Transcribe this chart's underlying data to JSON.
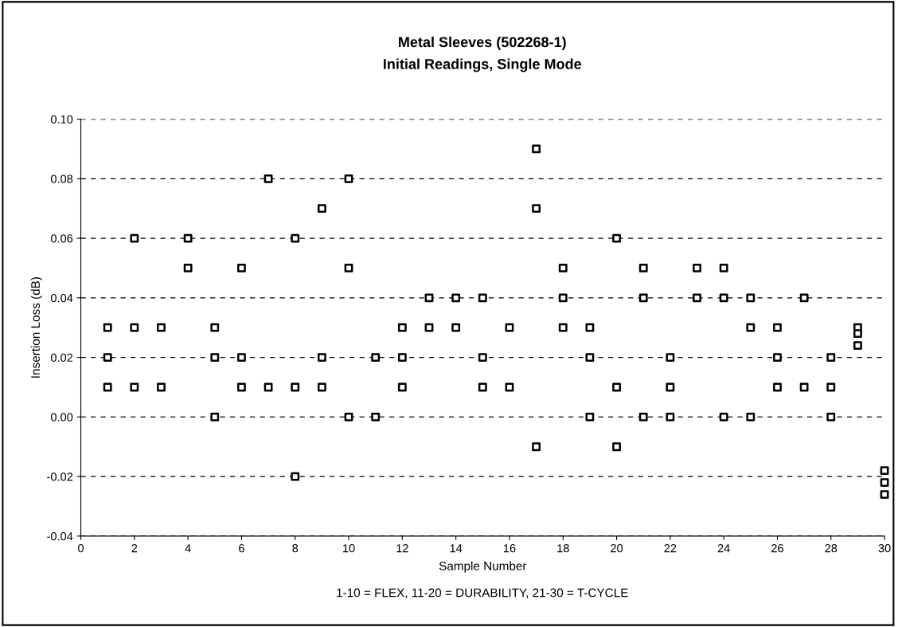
{
  "chart_data": {
    "type": "scatter",
    "title": "Metal Sleeves (502268-1)",
    "subtitle": "Initial Readings, Single Mode",
    "xlabel": "Sample Number",
    "ylabel": "Insertion Loss (dB)",
    "annotations": [
      "1-10 = FLEX, 11-20 = DURABILITY, 21-30 = T-CYCLE"
    ],
    "series": [
      {
        "color": "#000000",
        "x": [
          1,
          1,
          1,
          2,
          2,
          2,
          3,
          3,
          4,
          4,
          5,
          5,
          5,
          6,
          6,
          6,
          7,
          7,
          8,
          8,
          8,
          9,
          9,
          9,
          10,
          10,
          10,
          11,
          11,
          12,
          12,
          12,
          13,
          13,
          14,
          14,
          15,
          15,
          15,
          16,
          16,
          17,
          17,
          17,
          18,
          18,
          18,
          19,
          19,
          19,
          20,
          20,
          20,
          21,
          21,
          21,
          22,
          22,
          22,
          23,
          23,
          24,
          24,
          24,
          25,
          25,
          25,
          26,
          26,
          26,
          27,
          27,
          28,
          28,
          28,
          29,
          29,
          29,
          30,
          30,
          30
        ],
        "values": [
          0.03,
          0.02,
          0.01,
          0.06,
          0.03,
          0.01,
          0.03,
          0.01,
          0.06,
          0.05,
          0.03,
          0.02,
          0.0,
          0.05,
          0.02,
          0.01,
          0.08,
          0.01,
          0.06,
          0.01,
          -0.02,
          0.07,
          0.02,
          0.01,
          0.08,
          0.05,
          0.0,
          0.02,
          0.0,
          0.03,
          0.02,
          0.01,
          0.04,
          0.03,
          0.04,
          0.03,
          0.04,
          0.02,
          0.01,
          0.03,
          0.01,
          0.09,
          0.07,
          -0.01,
          0.05,
          0.04,
          0.03,
          0.03,
          0.02,
          0.0,
          0.06,
          0.01,
          -0.01,
          0.05,
          0.04,
          0.0,
          0.02,
          0.01,
          0.0,
          0.05,
          0.04,
          0.05,
          0.04,
          0.0,
          0.04,
          0.03,
          0.0,
          0.03,
          0.02,
          0.01,
          0.04,
          0.01,
          0.02,
          0.01,
          0.0,
          0.03,
          0.028,
          0.024,
          -0.018,
          -0.022,
          -0.026
        ]
      }
    ],
    "xlim": [
      0,
      30
    ],
    "xticks": [
      0,
      2,
      4,
      6,
      8,
      10,
      12,
      14,
      16,
      18,
      20,
      22,
      24,
      26,
      28,
      30
    ],
    "ylim": [
      -0.04,
      0.1
    ],
    "yticks": [
      {
        "value": -0.04,
        "label": "-0.04"
      },
      {
        "value": -0.02,
        "label": "-0.02"
      },
      {
        "value": 0,
        "label": "0.00"
      },
      {
        "value": 0.02,
        "label": "0.02"
      },
      {
        "value": 0.04,
        "label": "0.04"
      },
      {
        "value": 0.06,
        "label": "0.06"
      },
      {
        "value": 0.08,
        "label": "0.08"
      },
      {
        "value": 0.1,
        "label": "0.10"
      }
    ],
    "grid": "y",
    "line_style": "dashed",
    "marker": "square",
    "legend": false
  }
}
